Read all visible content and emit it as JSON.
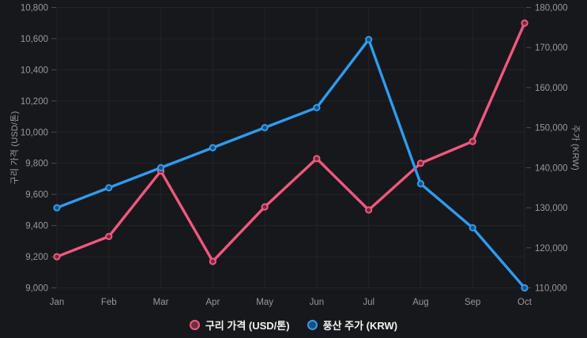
{
  "page": {
    "background": "#17181c",
    "grid_color": "#232428",
    "tick_color": "#4a4b50",
    "tick_text_color": "#97989c",
    "axis_title_color": "#9a9b9f",
    "legend_text_color": "#f2f2f2"
  },
  "chart_data": {
    "type": "line",
    "title": "",
    "categories": [
      "Jan",
      "Feb",
      "Mar",
      "Apr",
      "May",
      "Jun",
      "Jul",
      "Aug",
      "Sep",
      "Oct"
    ],
    "series": [
      {
        "name": "구리 가격 (USD/톤)",
        "axis": "left",
        "color": "#f4577f",
        "marker_fill": "#6e2c42",
        "values": [
          9200,
          9330,
          9750,
          9170,
          9520,
          9830,
          9500,
          9800,
          9940,
          10700
        ]
      },
      {
        "name": "풍산 주가 (KRW)",
        "axis": "right",
        "color": "#2f9bf0",
        "marker_fill": "#1b4f78",
        "values": [
          130000,
          135000,
          140000,
          145000,
          150000,
          155000,
          172000,
          136000,
          125000,
          110000
        ]
      }
    ],
    "left_axis": {
      "title": "구리 가격 (USD/톤)",
      "min": 9000,
      "max": 10800,
      "step": 200,
      "tick_labels": [
        "9,000",
        "9,200",
        "9,400",
        "9,600",
        "9,800",
        "10,000",
        "10,200",
        "10,400",
        "10,600",
        "10,800"
      ]
    },
    "right_axis": {
      "title": "주가 (KRW)",
      "min": 110000,
      "max": 180000,
      "step": 10000,
      "tick_labels": [
        "110,000",
        "120,000",
        "130,000",
        "140,000",
        "150,000",
        "160,000",
        "170,000",
        "180,000"
      ]
    },
    "grid": true,
    "legend_position": "bottom"
  },
  "legend": {
    "items": [
      {
        "label": "구리 가격 (USD/톤)",
        "color": "#f4577f",
        "fill": "#6e2c42"
      },
      {
        "label": "풍산 주가 (KRW)",
        "color": "#2f9bf0",
        "fill": "#1b4f78"
      }
    ]
  }
}
